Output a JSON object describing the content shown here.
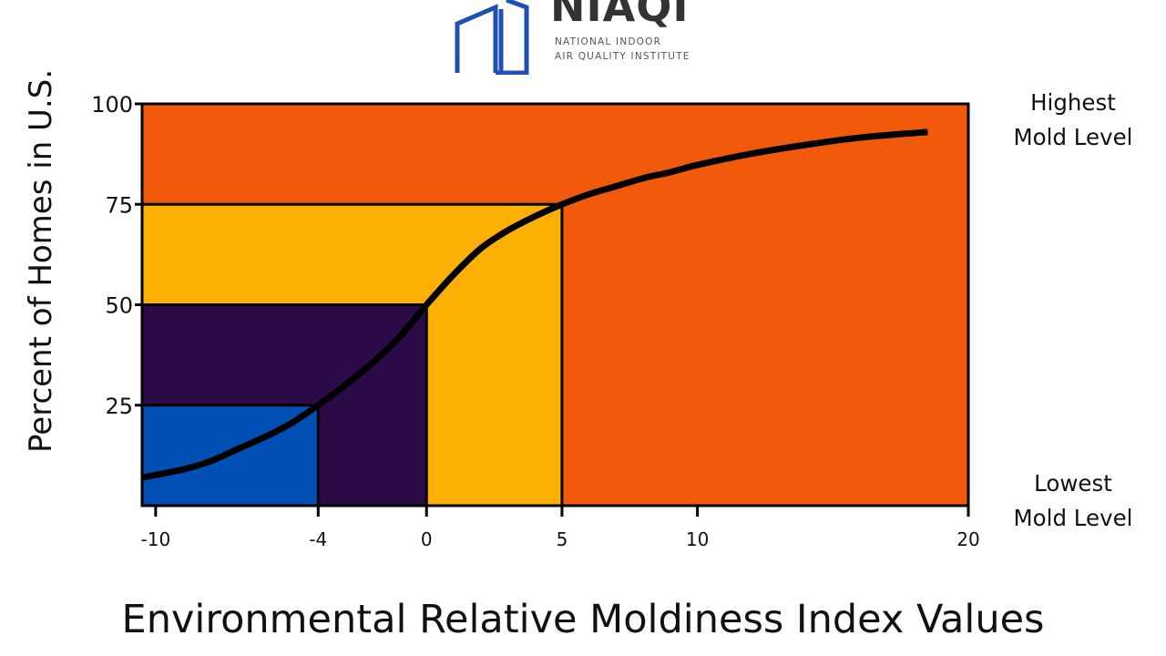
{
  "logo": {
    "wordmark": "NIAQI",
    "line1": "NATIONAL INDOOR",
    "line2": "AIR QUALITY INSTITUTE",
    "icon": "house-outline-icon",
    "color": "#1f4fb4"
  },
  "chart_data": {
    "type": "line",
    "title": "",
    "xlabel": "Environmental Relative Moldiness Index Values",
    "ylabel": "Percent of Homes in U.S.",
    "xlim": [
      -10.5,
      20
    ],
    "ylim": [
      0,
      100
    ],
    "x_ticks": [
      -10,
      -4,
      0,
      5,
      10,
      20
    ],
    "y_ticks": [
      25,
      50,
      75,
      100
    ],
    "grid": false,
    "legend": "none",
    "side_labels": {
      "top": [
        "Highest",
        "Mold Level"
      ],
      "bottom": [
        "Lowest",
        "Mold Level"
      ]
    },
    "zones": [
      {
        "x_to": 20,
        "y_to": 100,
        "color": "#f15a0a"
      },
      {
        "x_to": 5,
        "y_to": 75,
        "color": "#fdb004"
      },
      {
        "x_to": 0,
        "y_to": 50,
        "color": "#2a0b48"
      },
      {
        "x_to": -4,
        "y_to": 25,
        "color": "#024fb5"
      }
    ],
    "series": [
      {
        "x": [
          -10.5,
          -9,
          -8,
          -7,
          -6,
          -5,
          -4,
          -3,
          -2,
          -1,
          0,
          1,
          2,
          3,
          4,
          5,
          6,
          7,
          8,
          9,
          10,
          12,
          14,
          16,
          18.5
        ],
        "values": [
          7,
          9,
          11,
          14,
          17,
          20.5,
          25,
          30,
          35.5,
          42,
          50,
          57.5,
          64,
          68.5,
          72,
          75,
          77.5,
          79.5,
          81.5,
          83,
          84.8,
          87.6,
          89.8,
          91.6,
          93
        ],
        "color": "#000000"
      }
    ]
  }
}
